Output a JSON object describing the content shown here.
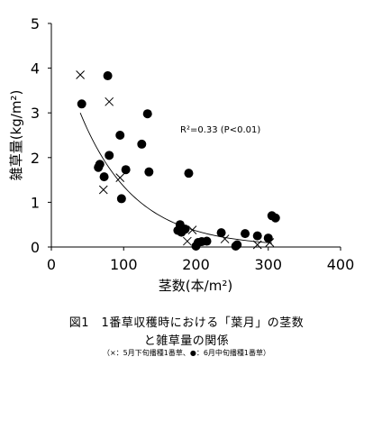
{
  "chart_data": {
    "type": "scatter",
    "xlabel": "茎数(本/m²)",
    "ylabel": "雑草量(kg/m²)",
    "xlim": [
      0,
      400
    ],
    "ylim": [
      0,
      5
    ],
    "xticks": [
      0,
      100,
      200,
      300,
      400
    ],
    "yticks": [
      0,
      1,
      2,
      3,
      4,
      5
    ],
    "xtick_labels": [
      "0",
      "100",
      "200",
      "300",
      "400"
    ],
    "ytick_labels": [
      "0",
      "1",
      "2",
      "3",
      "4",
      "5"
    ],
    "grid": false,
    "annotation": "R²=0.33 (P<0.01)",
    "series": [
      {
        "marker": "cross",
        "points": [
          [
            40,
            3.85
          ],
          [
            80,
            3.25
          ],
          [
            72,
            1.28
          ],
          [
            95,
            1.55
          ],
          [
            188,
            0.13
          ],
          [
            195,
            0.38
          ],
          [
            240,
            0.18
          ],
          [
            285,
            0.05
          ],
          [
            302,
            0.1
          ]
        ]
      },
      {
        "marker": "filled-circle",
        "points": [
          [
            42,
            3.2
          ],
          [
            78,
            3.83
          ],
          [
            65,
            1.78
          ],
          [
            67,
            1.85
          ],
          [
            73,
            1.57
          ],
          [
            80,
            2.05
          ],
          [
            95,
            2.5
          ],
          [
            97,
            1.08
          ],
          [
            103,
            1.73
          ],
          [
            125,
            2.3
          ],
          [
            133,
            2.98
          ],
          [
            135,
            1.68
          ],
          [
            190,
            1.65
          ],
          [
            175,
            0.37
          ],
          [
            178,
            0.5
          ],
          [
            180,
            0.33
          ],
          [
            185,
            0.4
          ],
          [
            200,
            0.02
          ],
          [
            203,
            0.1
          ],
          [
            208,
            0.12
          ],
          [
            215,
            0.13
          ],
          [
            235,
            0.32
          ],
          [
            255,
            0.02
          ],
          [
            257,
            0.05
          ],
          [
            268,
            0.3
          ],
          [
            285,
            0.25
          ],
          [
            300,
            0.2
          ],
          [
            305,
            0.7
          ],
          [
            310,
            0.65
          ]
        ]
      }
    ],
    "trendline": {
      "x_range": [
        40,
        305
      ]
    }
  },
  "caption": {
    "line1": "図1　1番草収穫時における「葉月」の茎数",
    "line2": "と雑草量の関係",
    "note": "（×：5月下旬播種1番草、●：6月中旬播種1番草）"
  }
}
